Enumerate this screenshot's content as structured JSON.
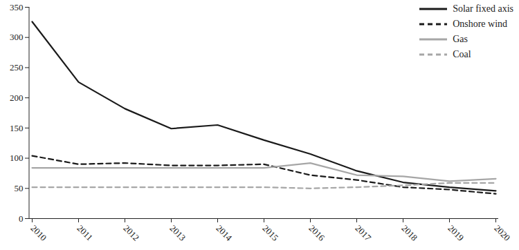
{
  "chart_data": {
    "type": "line",
    "categories": [
      "2010",
      "2011",
      "2012",
      "2013",
      "2014",
      "2015",
      "2016",
      "2017",
      "2018",
      "2019",
      "2020"
    ],
    "series": [
      {
        "name": "Solar fixed axis",
        "color": "#1a1a1a",
        "line_style": "solid",
        "values": [
          326,
          226,
          182,
          149,
          155,
          130,
          107,
          79,
          60,
          52,
          46
        ]
      },
      {
        "name": "Onshore wind",
        "color": "#1a1a1a",
        "line_style": "dashed",
        "values": [
          104,
          90,
          92,
          88,
          88,
          90,
          72,
          64,
          52,
          48,
          41
        ]
      },
      {
        "name": "Gas",
        "color": "#a6a6a6",
        "line_style": "solid",
        "values": [
          84,
          84,
          84,
          84,
          84,
          84,
          92,
          72,
          70,
          62,
          66
        ]
      },
      {
        "name": "Coal",
        "color": "#a6a6a6",
        "line_style": "dashed",
        "values": [
          52,
          52,
          52,
          52,
          52,
          52,
          50,
          52,
          55,
          59,
          59
        ]
      }
    ],
    "ylim": [
      0,
      350
    ],
    "yticks": [
      0,
      50,
      100,
      150,
      200,
      250,
      300,
      350
    ],
    "grid": false,
    "legend": "top-right"
  }
}
